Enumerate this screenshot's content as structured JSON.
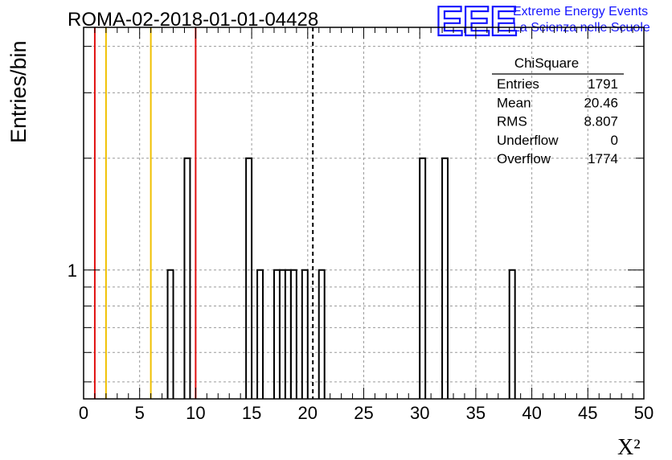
{
  "chart_data": {
    "type": "bar",
    "title": "ROMA-02-2018-01-01-04428",
    "xlabel": "X²",
    "ylabel": "Entries/bin",
    "xlim": [
      0,
      50
    ],
    "ylim_log": [
      0.45,
      4.5
    ],
    "log_y": true,
    "grid": true,
    "x_ticks": [
      0,
      5,
      10,
      15,
      20,
      25,
      30,
      35,
      40,
      45,
      50
    ],
    "y_tick_labels": [
      {
        "value": 1,
        "label": "1"
      }
    ],
    "bin_width": 0.5,
    "bins": [
      {
        "x": 7.5,
        "value": 1
      },
      {
        "x": 9.0,
        "value": 2
      },
      {
        "x": 14.5,
        "value": 2
      },
      {
        "x": 15.5,
        "value": 1
      },
      {
        "x": 17.0,
        "value": 1
      },
      {
        "x": 17.5,
        "value": 1
      },
      {
        "x": 18.0,
        "value": 1
      },
      {
        "x": 18.5,
        "value": 1
      },
      {
        "x": 19.5,
        "value": 1
      },
      {
        "x": 21.0,
        "value": 1
      },
      {
        "x": 30.0,
        "value": 2
      },
      {
        "x": 32.0,
        "value": 2
      },
      {
        "x": 38.0,
        "value": 1
      }
    ],
    "vertical_lines": [
      {
        "x": 1.0,
        "color": "#e01010",
        "style": "solid"
      },
      {
        "x": 2.0,
        "color": "#f0c000",
        "style": "solid"
      },
      {
        "x": 6.0,
        "color": "#f0c000",
        "style": "solid"
      },
      {
        "x": 10.0,
        "color": "#e01010",
        "style": "solid"
      },
      {
        "x": 20.46,
        "color": "#000000",
        "style": "dashed"
      }
    ],
    "stats_box": {
      "title": "ChiSquare",
      "rows": [
        {
          "label": "Entries",
          "value": "1791"
        },
        {
          "label": "Mean",
          "value": "20.46"
        },
        {
          "label": "RMS",
          "value": "8.807"
        },
        {
          "label": "Underflow",
          "value": "0"
        },
        {
          "label": "Overflow",
          "value": "1774"
        }
      ]
    }
  },
  "logo": {
    "mark": "EEE",
    "line1": "Extreme Energy Events",
    "line2": "La Scienza nelle Scuole",
    "color": "#1515ff"
  }
}
